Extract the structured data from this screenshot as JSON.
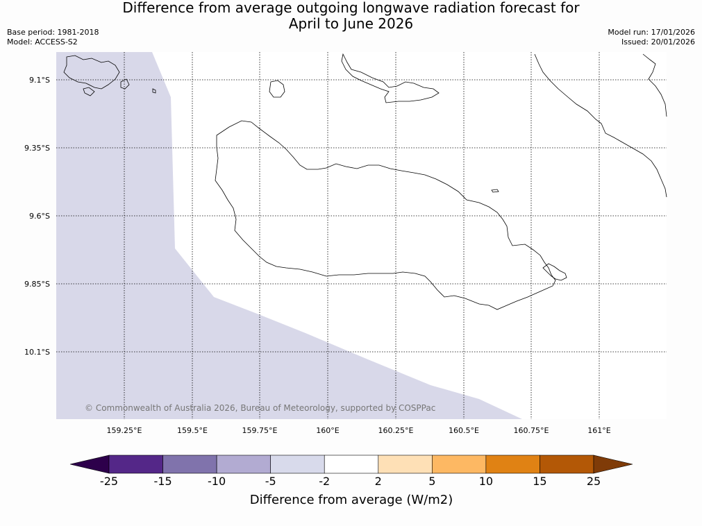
{
  "header": {
    "title_line1": "Difference from average outgoing longwave radiation forecast for",
    "title_line2": "April to June 2026",
    "base_period": "Base period: 1981-2018",
    "model": "Model: ACCESS-S2",
    "model_run": "Model run: 17/01/2026",
    "issued": "Issued: 20/01/2026"
  },
  "map": {
    "copyright": "© Commonwealth of Australia 2026, Bureau of Meteorology, supported by COSPPac",
    "lat_labels": [
      "9.1°S",
      "9.35°S",
      "9.6°S",
      "9.85°S",
      "10.1°S"
    ],
    "lon_labels": [
      "159.25°E",
      "159.5°E",
      "159.75°E",
      "160°E",
      "160.25°E",
      "160.5°E",
      "160.75°E",
      "161°E"
    ],
    "shaded_category": "-5 to -2",
    "shaded_color": "#d8d8e9",
    "land_outline_color": "#000000",
    "grid_color": "#000000"
  },
  "colorbar": {
    "title": "Difference from average (W/m2)",
    "tick_labels": [
      "-25",
      "-15",
      "-10",
      "-5",
      "-2",
      "2",
      "5",
      "10",
      "15",
      "25"
    ],
    "extend_low_color": "#2d004b",
    "extend_high_color": "#7f3b08",
    "bins": [
      {
        "from": "-25",
        "to": "-15",
        "color": "#542788"
      },
      {
        "from": "-15",
        "to": "-10",
        "color": "#8073ac"
      },
      {
        "from": "-10",
        "to": "-5",
        "color": "#b2abd2"
      },
      {
        "from": "-5",
        "to": "-2",
        "color": "#d8daeb"
      },
      {
        "from": "-2",
        "to": "2",
        "color": "#ffffff"
      },
      {
        "from": "2",
        "to": "5",
        "color": "#fee0b6"
      },
      {
        "from": "5",
        "to": "10",
        "color": "#fdb863"
      },
      {
        "from": "10",
        "to": "15",
        "color": "#e08214"
      },
      {
        "from": "15",
        "to": "25",
        "color": "#b35806"
      }
    ]
  }
}
